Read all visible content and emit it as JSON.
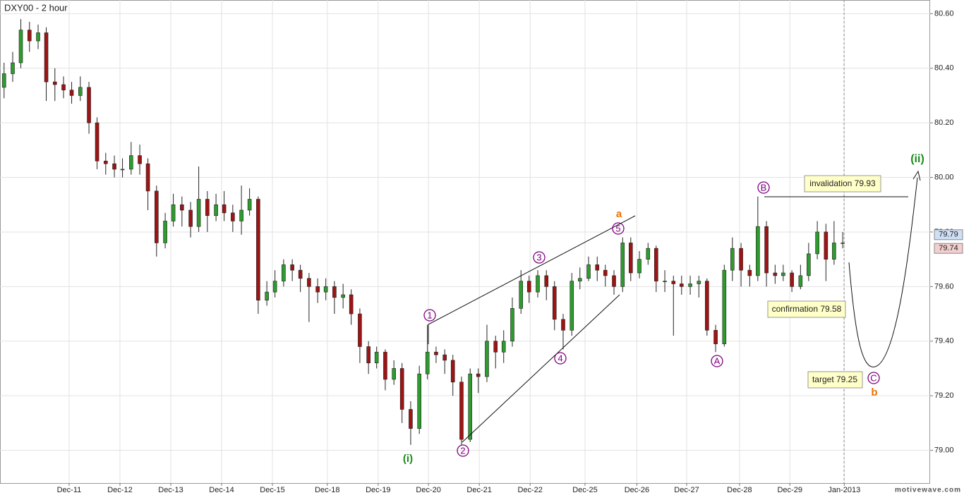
{
  "chart_data": {
    "type": "candlestick",
    "title": "DXY00 - 2 hour",
    "watermark": "motivewave.com",
    "xlim": [
      -0.36,
      17.94
    ],
    "ylim": [
      78.88,
      80.65
    ],
    "xticks": [
      {
        "value": 1,
        "label": "Dec-11"
      },
      {
        "value": 2,
        "label": "Dec-12"
      },
      {
        "value": 3,
        "label": "Dec-13"
      },
      {
        "value": 4,
        "label": "Dec-14"
      },
      {
        "value": 5,
        "label": "Dec-15"
      },
      {
        "value": 6.08,
        "label": "Dec-18"
      },
      {
        "value": 7.08,
        "label": "Dec-19"
      },
      {
        "value": 8.07,
        "label": "Dec-20"
      },
      {
        "value": 9.07,
        "label": "Dec-21"
      },
      {
        "value": 10.07,
        "label": "Dec-22"
      },
      {
        "value": 11.15,
        "label": "Dec-25"
      },
      {
        "value": 12.17,
        "label": "Dec-26"
      },
      {
        "value": 13.15,
        "label": "Dec-27"
      },
      {
        "value": 14.19,
        "label": "Dec-28"
      },
      {
        "value": 15.18,
        "label": "Dec-29"
      },
      {
        "value": 16.25,
        "label": "Jan-2013"
      }
    ],
    "yticks": [
      {
        "value": 79,
        "label": "79.00"
      },
      {
        "value": 79.2,
        "label": "79.20"
      },
      {
        "value": 79.4,
        "label": "79.40"
      },
      {
        "value": 79.6,
        "label": "79.60"
      },
      {
        "value": 79.8,
        "label": "79.80"
      },
      {
        "value": 80,
        "label": "80.00"
      },
      {
        "value": 80.2,
        "label": "80.20"
      },
      {
        "value": 80.4,
        "label": "80.40"
      },
      {
        "value": 80.6,
        "label": "80.60"
      }
    ],
    "grid": true,
    "up_color": "#2e9b2e",
    "down_color": "#9e1414",
    "x": [
      -0.28,
      -0.11,
      0.05,
      0.22,
      0.39,
      0.55,
      0.72,
      0.89,
      1.05,
      1.22,
      1.39,
      1.55,
      1.72,
      1.89,
      2.05,
      2.22,
      2.39,
      2.55,
      2.72,
      2.89,
      3.05,
      3.22,
      3.39,
      3.55,
      3.72,
      3.89,
      4.05,
      4.22,
      4.39,
      4.55,
      4.72,
      4.89,
      5.05,
      5.22,
      5.39,
      5.55,
      5.72,
      5.89,
      6.05,
      6.22,
      6.39,
      6.55,
      6.72,
      6.89,
      7.05,
      7.22,
      7.39,
      7.55,
      7.72,
      7.89,
      8.05,
      8.22,
      8.39,
      8.55,
      8.72,
      8.89,
      9.05,
      9.22,
      9.39,
      9.55,
      9.72,
      9.89,
      10.05,
      10.22,
      10.39,
      10.55,
      10.72,
      10.89,
      11.05,
      11.22,
      11.39,
      11.55,
      11.72,
      11.89,
      12.05,
      12.22,
      12.39,
      12.55,
      12.72,
      12.89,
      13.05,
      13.22,
      13.39,
      13.55,
      13.72,
      13.89,
      14.05,
      14.22,
      14.39,
      14.55,
      14.72,
      14.89,
      15.05,
      15.22,
      15.39,
      15.55,
      15.72,
      15.89,
      16.05,
      16.22
    ],
    "open": [
      80.33,
      80.38,
      80.42,
      80.54,
      80.5,
      80.53,
      80.35,
      80.34,
      80.32,
      80.3,
      80.33,
      80.2,
      80.06,
      80.05,
      80.03,
      80.03,
      80.08,
      80.05,
      79.95,
      79.76,
      79.84,
      79.9,
      79.88,
      79.82,
      79.92,
      79.86,
      79.9,
      79.87,
      79.84,
      79.88,
      79.92,
      79.55,
      79.58,
      79.62,
      79.68,
      79.66,
      79.63,
      79.6,
      79.58,
      79.6,
      79.56,
      79.57,
      79.5,
      79.38,
      79.32,
      79.36,
      79.26,
      79.3,
      79.15,
      79.08,
      79.28,
      79.36,
      79.35,
      79.33,
      79.25,
      79.04,
      79.28,
      79.27,
      79.4,
      79.36,
      79.4,
      79.52,
      79.62,
      79.58,
      79.64,
      79.6,
      79.48,
      79.44,
      79.62,
      79.63,
      79.68,
      79.66,
      79.64,
      79.6,
      79.76,
      79.65,
      79.7,
      79.74,
      79.62,
      79.62,
      79.61,
      79.6,
      79.61,
      79.62,
      79.44,
      79.39,
      79.66,
      79.74,
      79.66,
      79.64,
      79.82,
      79.65,
      79.64,
      79.65,
      79.6,
      79.64,
      79.72,
      79.8,
      79.7,
      79.76
    ],
    "high": [
      80.42,
      80.46,
      80.58,
      80.57,
      80.56,
      80.55,
      80.4,
      80.37,
      80.35,
      80.37,
      80.35,
      80.22,
      80.09,
      80.08,
      80.07,
      80.13,
      80.12,
      80.07,
      79.97,
      79.87,
      79.94,
      79.93,
      79.91,
      80.04,
      79.95,
      79.94,
      79.95,
      79.9,
      79.97,
      79.96,
      79.93,
      79.62,
      79.66,
      79.7,
      79.7,
      79.68,
      79.65,
      79.63,
      79.63,
      79.62,
      79.61,
      79.59,
      79.52,
      79.4,
      79.38,
      79.37,
      79.33,
      79.32,
      79.18,
      79.31,
      79.46,
      79.38,
      79.37,
      79.35,
      79.27,
      79.3,
      79.3,
      79.46,
      79.42,
      79.44,
      79.56,
      79.66,
      79.64,
      79.66,
      79.66,
      79.62,
      79.5,
      79.65,
      79.67,
      79.71,
      79.71,
      79.68,
      79.66,
      79.78,
      79.78,
      79.73,
      79.76,
      79.75,
      79.66,
      79.64,
      79.64,
      79.64,
      79.64,
      79.63,
      79.46,
      79.68,
      79.78,
      79.76,
      79.68,
      79.93,
      79.84,
      79.68,
      79.68,
      79.66,
      79.68,
      79.76,
      79.84,
      79.83,
      79.84,
      79.8
    ],
    "low": [
      80.29,
      80.35,
      80.4,
      80.46,
      80.47,
      80.28,
      80.28,
      80.29,
      80.27,
      80.28,
      80.16,
      80.03,
      80.01,
      80.0,
      80.0,
      80.01,
      80.01,
      79.88,
      79.71,
      79.74,
      79.82,
      79.82,
      79.78,
      79.8,
      79.8,
      79.84,
      79.84,
      79.8,
      79.79,
      79.86,
      79.5,
      79.53,
      79.56,
      79.6,
      79.62,
      79.58,
      79.47,
      79.54,
      79.55,
      79.5,
      79.52,
      79.46,
      79.32,
      79.28,
      79.3,
      79.22,
      79.24,
      79.1,
      79.02,
      79.06,
      79.26,
      79.32,
      79.28,
      79.2,
      79.02,
      79.03,
      79.21,
      79.25,
      79.3,
      79.32,
      79.38,
      79.5,
      79.54,
      79.56,
      79.55,
      79.44,
      79.37,
      79.42,
      79.59,
      79.62,
      79.62,
      79.6,
      79.57,
      79.58,
      79.62,
      79.63,
      79.68,
      79.58,
      79.58,
      79.42,
      79.57,
      79.57,
      79.56,
      79.42,
      79.36,
      79.38,
      79.62,
      79.6,
      79.6,
      79.62,
      79.6,
      79.61,
      79.62,
      79.58,
      79.59,
      79.62,
      79.7,
      79.62,
      79.68,
      79.74
    ],
    "close": [
      80.38,
      80.42,
      80.54,
      80.5,
      80.53,
      80.35,
      80.34,
      80.32,
      80.3,
      80.33,
      80.2,
      80.06,
      80.05,
      80.03,
      80.03,
      80.08,
      80.05,
      79.95,
      79.76,
      79.84,
      79.9,
      79.88,
      79.82,
      79.92,
      79.86,
      79.9,
      79.87,
      79.84,
      79.88,
      79.92,
      79.55,
      79.58,
      79.62,
      79.68,
      79.66,
      79.63,
      79.6,
      79.58,
      79.6,
      79.56,
      79.57,
      79.5,
      79.38,
      79.32,
      79.36,
      79.26,
      79.3,
      79.15,
      79.08,
      79.28,
      79.36,
      79.35,
      79.33,
      79.25,
      79.04,
      79.28,
      79.27,
      79.4,
      79.36,
      79.4,
      79.52,
      79.62,
      79.58,
      79.64,
      79.6,
      79.48,
      79.44,
      79.62,
      79.63,
      79.68,
      79.66,
      79.64,
      79.6,
      79.76,
      79.65,
      79.7,
      79.74,
      79.62,
      79.62,
      79.61,
      79.6,
      79.61,
      79.62,
      79.44,
      79.39,
      79.66,
      79.74,
      79.66,
      79.64,
      79.82,
      79.65,
      79.64,
      79.65,
      79.6,
      79.64,
      79.72,
      79.8,
      79.7,
      79.76,
      79.76
    ],
    "price_markers": [
      {
        "value": 79.79,
        "color": "#cfe0f5"
      },
      {
        "value": 79.74,
        "color": "#f3cfcf"
      }
    ],
    "wave_labels": [
      "(i)",
      "1",
      "2",
      "3",
      "4",
      "5",
      "a",
      "A",
      "B",
      "C",
      "b",
      "(ii)"
    ],
    "notes": [
      "invalidation 79.93",
      "confirmation 79.58",
      "target 79.25"
    ]
  }
}
